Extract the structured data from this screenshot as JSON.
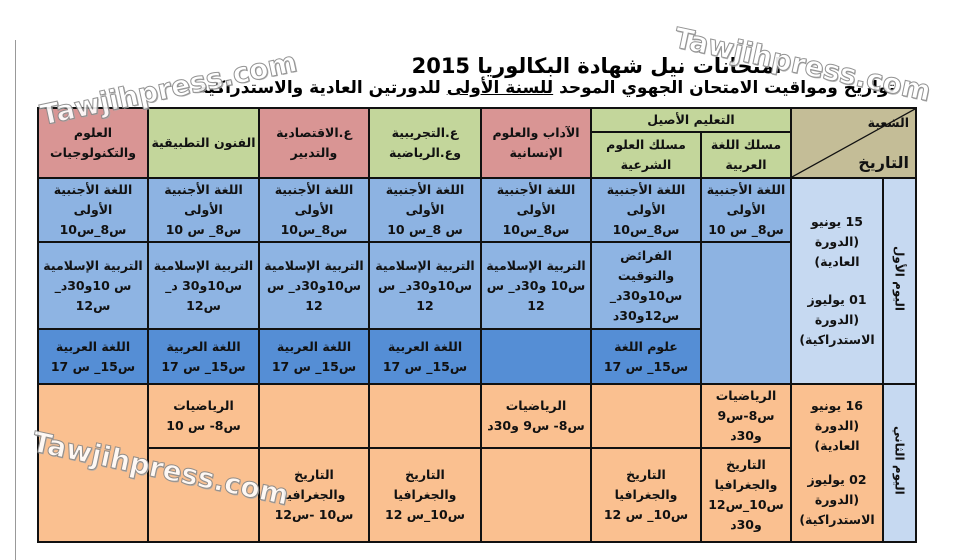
{
  "title": "امتحانات نيل شهادة البكالوريا 2015",
  "subtitle_before": "تواريخ ومواقيت الامتحان الجهوي الموحد ",
  "subtitle_underlined": "للسنة الأولى",
  "subtitle_after": " للدورتين العادية والاستدراكية",
  "watermark": "Tawjihpress.com",
  "header": {
    "branch": "الشعبة",
    "date": "التاريخ",
    "original": "التعليم الأصيل",
    "arabic_track": "مسلك اللغة العربية",
    "sharia_track": "مسلك العلوم الشرعية",
    "letters": "الآداب والعلوم الإنسانية",
    "experimental": "ع.التجريبية وع.الرياضية",
    "economics": "ع.الاقتصادية والتدبير",
    "arts": "الفنون التطبيقية",
    "tech": "العلوم والتكنولوجيات"
  },
  "day1": {
    "label": "اليوم الأول",
    "date1": "15 يونيو",
    "session1": "(الدورة العادية)",
    "date2": "01 يوليوز",
    "session2": "(الدورة الاستدراكية)",
    "r1": {
      "subject": "اللغة الأجنبية الأولى",
      "t7": "س8_ س 10",
      "t6": "س8_س10",
      "t5": "س8_س10",
      "t4": "س 8_س 10",
      "t3": "س8_س10",
      "t2": "س8_ س 10",
      "t1": "س8_س10"
    },
    "r2": {
      "s6": "الفرائض والتوقيت",
      "t6": "س10و30د_ س12و30د",
      "subject": "التربية الإسلامية",
      "t5": "س10 و30د_ س 12",
      "t4": "س10و30د_ س 12",
      "t3": "س10و30د_ س 12",
      "t2": "س10و30 د_ س12",
      "t1": "س 10و30د_ س12"
    },
    "r3": {
      "s6": "علوم اللغة",
      "t6": "س15_ س 17",
      "subject": "اللغة العربية",
      "t": "س15_ س 17"
    }
  },
  "day2": {
    "label": "اليوم الثاني",
    "date1": "16 يونيو",
    "session1": "(الدورة العادية)",
    "date2": "02 يوليوز",
    "session2": "(الدورة الاستدراكية)",
    "r1": {
      "subject": "الرياضيات",
      "t7": "س8-س9 و30د",
      "t5": "س8- س9 و30د",
      "t2": "س8- س 10"
    },
    "r2": {
      "subject": "التاريخ والجغرافيا",
      "t7": "س10_س12 و30د",
      "t6": "س10_ س 12",
      "t4": "س10_س 12",
      "t3": "س10 -س12"
    }
  }
}
